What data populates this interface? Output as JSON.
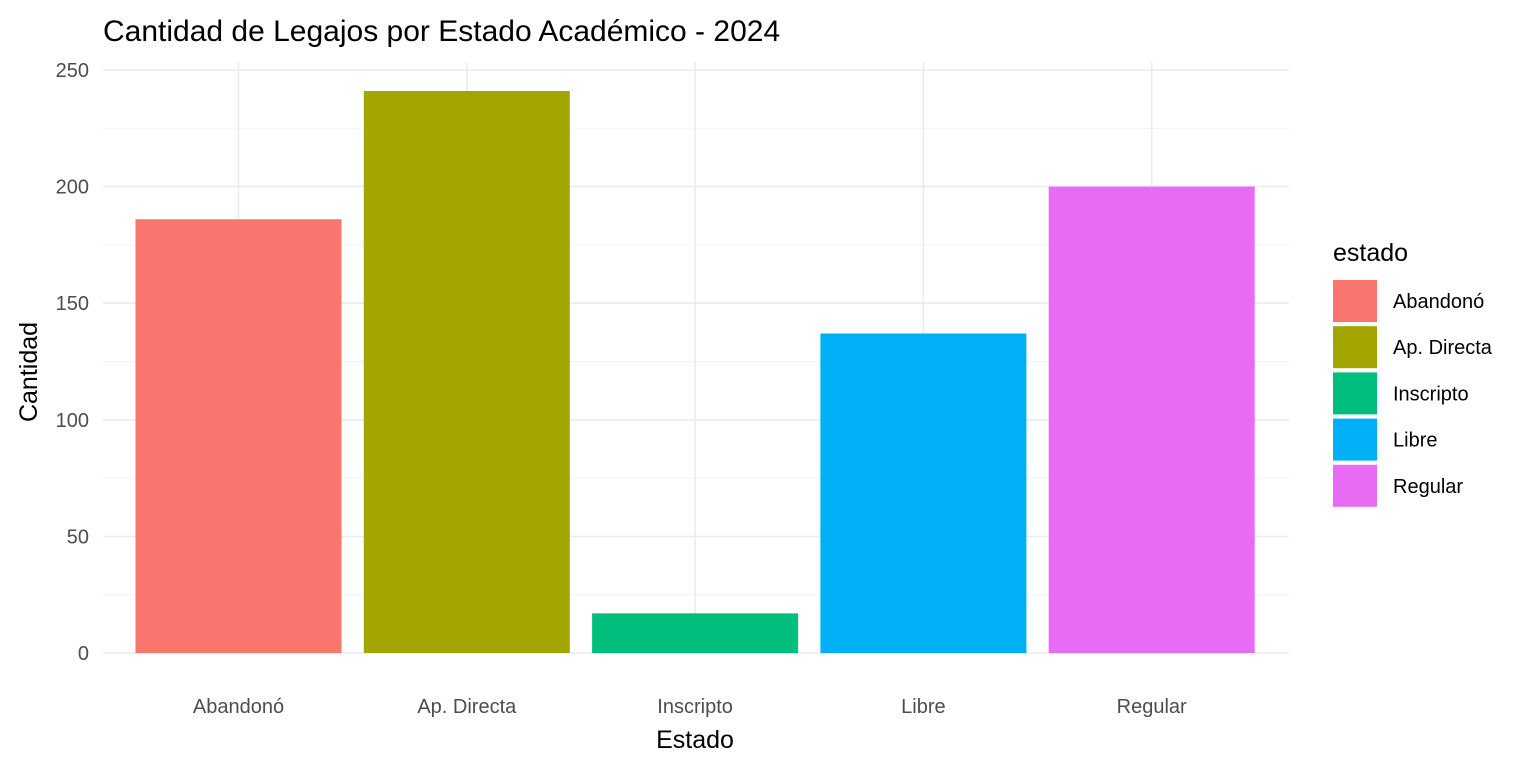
{
  "chart_data": {
    "type": "bar",
    "title": "Cantidad de Legajos por Estado Académico - 2024",
    "xlabel": "Estado",
    "ylabel": "Cantidad",
    "categories": [
      "Abandonó",
      "Ap. Directa",
      "Inscripto",
      "Libre",
      "Regular"
    ],
    "values": [
      186,
      241,
      17,
      137,
      200
    ],
    "colors": [
      "#F8766D",
      "#A3A500",
      "#00BF7D",
      "#00B0F6",
      "#E76BF3"
    ],
    "ylim": [
      0,
      250
    ],
    "yticks": [
      0,
      50,
      100,
      150,
      200,
      250
    ],
    "grid": true,
    "legend": {
      "title": "estado",
      "position": "right",
      "entries": [
        "Abandonó",
        "Ap. Directa",
        "Inscripto",
        "Libre",
        "Regular"
      ]
    }
  }
}
